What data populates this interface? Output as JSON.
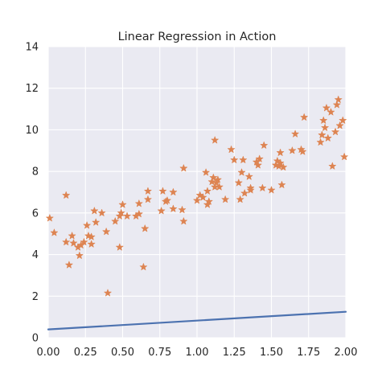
{
  "chart_data": {
    "type": "scatter",
    "title": "Linear Regression in Action",
    "xlabel": "",
    "ylabel": "",
    "xlim": [
      0.0,
      2.0
    ],
    "ylim": [
      0,
      14
    ],
    "x_ticks": [
      0.0,
      0.25,
      0.5,
      0.75,
      1.0,
      1.25,
      1.5,
      1.75,
      2.0
    ],
    "x_tick_labels": [
      "0.00",
      "0.25",
      "0.50",
      "0.75",
      "1.00",
      "1.25",
      "1.50",
      "1.75",
      "2.00"
    ],
    "y_ticks": [
      0,
      2,
      4,
      6,
      8,
      10,
      12,
      14
    ],
    "y_tick_labels": [
      "0",
      "2",
      "4",
      "6",
      "8",
      "10",
      "12",
      "14"
    ],
    "grid": true,
    "series": [
      {
        "kind": "line",
        "color": "#4c72b0",
        "x": [
          0.0,
          2.0
        ],
        "y": [
          0.4,
          1.25
        ]
      },
      {
        "kind": "scatter",
        "marker": "star",
        "color": "#dd8452",
        "points": [
          [
            0.01,
            5.75
          ],
          [
            0.04,
            5.05
          ],
          [
            0.12,
            6.85
          ],
          [
            0.12,
            4.6
          ],
          [
            0.14,
            3.5
          ],
          [
            0.16,
            4.9
          ],
          [
            0.17,
            4.55
          ],
          [
            0.2,
            4.35
          ],
          [
            0.21,
            3.95
          ],
          [
            0.22,
            4.45
          ],
          [
            0.24,
            4.6
          ],
          [
            0.26,
            5.4
          ],
          [
            0.27,
            4.9
          ],
          [
            0.29,
            4.5
          ],
          [
            0.29,
            4.85
          ],
          [
            0.31,
            6.1
          ],
          [
            0.32,
            5.55
          ],
          [
            0.36,
            6.0
          ],
          [
            0.39,
            5.1
          ],
          [
            0.4,
            2.15
          ],
          [
            0.45,
            5.6
          ],
          [
            0.48,
            5.85
          ],
          [
            0.48,
            4.35
          ],
          [
            0.49,
            6.0
          ],
          [
            0.5,
            6.4
          ],
          [
            0.53,
            5.85
          ],
          [
            0.59,
            5.85
          ],
          [
            0.61,
            5.95
          ],
          [
            0.61,
            6.45
          ],
          [
            0.64,
            3.4
          ],
          [
            0.65,
            5.25
          ],
          [
            0.67,
            6.65
          ],
          [
            0.67,
            7.05
          ],
          [
            0.76,
            6.1
          ],
          [
            0.77,
            7.05
          ],
          [
            0.79,
            6.55
          ],
          [
            0.8,
            6.6
          ],
          [
            0.84,
            6.2
          ],
          [
            0.84,
            7.0
          ],
          [
            0.9,
            6.15
          ],
          [
            0.91,
            8.15
          ],
          [
            0.91,
            5.6
          ],
          [
            1.0,
            6.6
          ],
          [
            1.02,
            6.85
          ],
          [
            1.04,
            6.75
          ],
          [
            1.06,
            7.95
          ],
          [
            1.07,
            7.05
          ],
          [
            1.07,
            6.4
          ],
          [
            1.08,
            6.55
          ],
          [
            1.1,
            7.5
          ],
          [
            1.11,
            7.7
          ],
          [
            1.12,
            7.25
          ],
          [
            1.12,
            9.5
          ],
          [
            1.13,
            7.45
          ],
          [
            1.14,
            7.6
          ],
          [
            1.15,
            7.25
          ],
          [
            1.19,
            6.65
          ],
          [
            1.23,
            9.05
          ],
          [
            1.25,
            8.55
          ],
          [
            1.28,
            7.45
          ],
          [
            1.29,
            6.65
          ],
          [
            1.3,
            7.95
          ],
          [
            1.31,
            8.55
          ],
          [
            1.32,
            6.95
          ],
          [
            1.35,
            7.75
          ],
          [
            1.36,
            7.1
          ],
          [
            1.36,
            7.2
          ],
          [
            1.4,
            8.45
          ],
          [
            1.41,
            8.3
          ],
          [
            1.42,
            8.6
          ],
          [
            1.44,
            7.2
          ],
          [
            1.45,
            9.25
          ],
          [
            1.5,
            7.1
          ],
          [
            1.53,
            8.3
          ],
          [
            1.54,
            8.5
          ],
          [
            1.55,
            8.25
          ],
          [
            1.56,
            8.4
          ],
          [
            1.56,
            8.9
          ],
          [
            1.57,
            7.35
          ],
          [
            1.58,
            8.2
          ],
          [
            1.64,
            9.0
          ],
          [
            1.66,
            9.8
          ],
          [
            1.7,
            9.05
          ],
          [
            1.71,
            8.95
          ],
          [
            1.72,
            10.6
          ],
          [
            1.83,
            9.4
          ],
          [
            1.84,
            9.75
          ],
          [
            1.85,
            10.45
          ],
          [
            1.86,
            10.1
          ],
          [
            1.87,
            11.05
          ],
          [
            1.88,
            9.6
          ],
          [
            1.9,
            10.85
          ],
          [
            1.91,
            8.25
          ],
          [
            1.93,
            9.9
          ],
          [
            1.94,
            11.2
          ],
          [
            1.95,
            11.45
          ],
          [
            1.96,
            10.2
          ],
          [
            1.98,
            10.45
          ],
          [
            1.99,
            8.7
          ]
        ]
      }
    ]
  }
}
